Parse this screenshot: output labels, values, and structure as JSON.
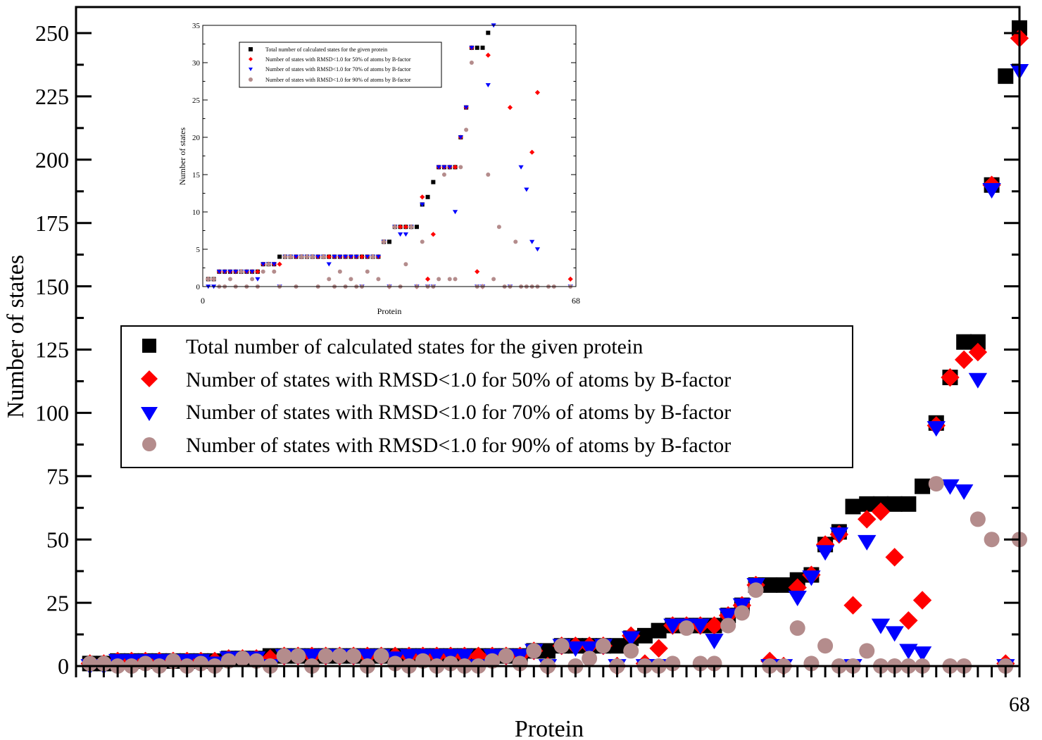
{
  "chart_data": {
    "type": "scatter",
    "title": "",
    "xlabel": "Protein",
    "ylabel": "Number of states",
    "xlim": [
      0,
      68
    ],
    "ylim": [
      0,
      260
    ],
    "yticks": [
      0,
      25,
      50,
      75,
      100,
      125,
      150,
      175,
      200,
      225,
      250
    ],
    "xtick_labels": [
      "68"
    ],
    "grid": false,
    "legend_position": "center-left",
    "x": [
      1,
      2,
      3,
      4,
      5,
      6,
      7,
      8,
      9,
      10,
      11,
      12,
      13,
      14,
      15,
      16,
      17,
      18,
      19,
      20,
      21,
      22,
      23,
      24,
      25,
      26,
      27,
      28,
      29,
      30,
      31,
      32,
      33,
      34,
      35,
      36,
      37,
      38,
      39,
      40,
      41,
      42,
      43,
      44,
      45,
      46,
      47,
      48,
      49,
      50,
      51,
      52,
      53,
      54,
      55,
      56,
      57,
      58,
      59,
      60,
      61,
      62,
      63,
      64,
      65,
      66,
      67,
      68
    ],
    "series": [
      {
        "name": "Total number of calculated states for the given protein",
        "marker": "square",
        "color": "#000000",
        "values": [
          1,
          1,
          2,
          2,
          2,
          2,
          2,
          2,
          2,
          2,
          3,
          3,
          3,
          4,
          4,
          4,
          4,
          4,
          4,
          4,
          4,
          4,
          4,
          4,
          4,
          4,
          4,
          4,
          4,
          4,
          4,
          4,
          6,
          6,
          8,
          8,
          8,
          8,
          8,
          11,
          12,
          14,
          16,
          16,
          16,
          16,
          20,
          24,
          32,
          32,
          32,
          34,
          36,
          48,
          53,
          63,
          64,
          64,
          64,
          64,
          71,
          96,
          114,
          128,
          128,
          190,
          233,
          252
        ]
      },
      {
        "name": "Number of states with RMSD<1.0 for 50% of atoms by B-factor",
        "marker": "diamond",
        "color": "#ff0000",
        "values": [
          1,
          1,
          2,
          2,
          2,
          2,
          2,
          2,
          2,
          2,
          3,
          3,
          3,
          3,
          4,
          4,
          4,
          4,
          4,
          4,
          4,
          4,
          4,
          4,
          4,
          4,
          4,
          4,
          4,
          4,
          4,
          4,
          6,
          0,
          8,
          8,
          8,
          8,
          0,
          12,
          1,
          7,
          16,
          16,
          16,
          16,
          20,
          24,
          32,
          2,
          0,
          31,
          36,
          48,
          52,
          24,
          58,
          61,
          43,
          18,
          26,
          95,
          114,
          121,
          124,
          190,
          1,
          248
        ]
      },
      {
        "name": "Number of states with RMSD<1.0 for 70% of atoms by B-factor",
        "marker": "triangle-down",
        "color": "#0000ff",
        "values": [
          0,
          0,
          2,
          2,
          2,
          2,
          2,
          2,
          2,
          1,
          3,
          3,
          3,
          0,
          4,
          4,
          4,
          4,
          4,
          4,
          4,
          4,
          3,
          4,
          4,
          4,
          4,
          4,
          0,
          4,
          4,
          4,
          6,
          0,
          8,
          7,
          7,
          8,
          0,
          11,
          0,
          0,
          16,
          16,
          16,
          10,
          20,
          24,
          32,
          0,
          0,
          27,
          35,
          45,
          52,
          0,
          49,
          16,
          13,
          6,
          5,
          94,
          71,
          69,
          113,
          188,
          0,
          235
        ]
      },
      {
        "name": "Number of states with RMSD<1.0 for 90% of atoms by B-factor",
        "marker": "circle",
        "color": "#b48c8c",
        "values": [
          1,
          1,
          0,
          0,
          1,
          0,
          2,
          0,
          1,
          0,
          2,
          3,
          2,
          0,
          4,
          4,
          0,
          4,
          4,
          4,
          0,
          4,
          1,
          0,
          2,
          0,
          1,
          0,
          0,
          2,
          4,
          1,
          6,
          0,
          8,
          0,
          3,
          8,
          0,
          6,
          0,
          0,
          1,
          15,
          1,
          1,
          16,
          21,
          30,
          0,
          0,
          15,
          1,
          8,
          0,
          0,
          6,
          0,
          0,
          0,
          0,
          72,
          0,
          0,
          58,
          50,
          0,
          50
        ]
      }
    ],
    "inset": {
      "xlabel": "Protein",
      "ylabel": "Number of states",
      "xlim": [
        0,
        68
      ],
      "ylim": [
        0,
        35
      ],
      "yticks": [
        0,
        5,
        10,
        15,
        20,
        25,
        30,
        35
      ],
      "xtick_labels": [
        "0",
        "68"
      ],
      "legend_position": "top-left"
    }
  }
}
